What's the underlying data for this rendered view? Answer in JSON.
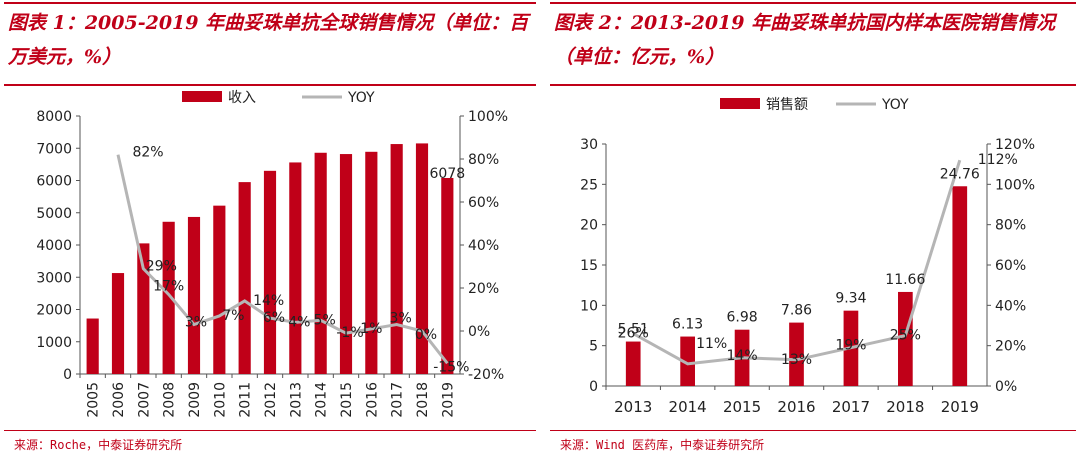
{
  "charts": [
    {
      "title": "图表 1：2005-2019 年曲妥珠单抗全球销售情况（单位：百万美元，%）",
      "source": "来源：Roche，中泰证券研究所",
      "chart_data": {
        "type": "bar",
        "categories": [
          "2005",
          "2006",
          "2007",
          "2008",
          "2009",
          "2010",
          "2011",
          "2012",
          "2013",
          "2014",
          "2015",
          "2016",
          "2017",
          "2018",
          "2019"
        ],
        "series": [
          {
            "name": "收入",
            "type": "bar",
            "axis": "left",
            "values": [
              1720,
              3130,
              4050,
              4720,
              4870,
              5220,
              5950,
              6300,
              6560,
              6860,
              6820,
              6890,
              7130,
              7150,
              6078
            ]
          },
          {
            "name": "YOY",
            "type": "line",
            "axis": "right",
            "values": [
              null,
              82,
              29,
              17,
              3,
              7,
              14,
              6,
              4,
              5,
              -1,
              1,
              3,
              0,
              -15
            ]
          }
        ],
        "bar_labels": [
          {
            "index": 14,
            "text": "6078"
          }
        ],
        "line_labels": [
          "",
          "82%",
          "29%",
          "17%",
          "3%",
          "7%",
          "14%",
          "6%",
          "4%",
          "5%",
          "-1%",
          "1%",
          "3%",
          "0%",
          "-15%"
        ],
        "left_axis": {
          "min": 0,
          "max": 8000,
          "ticks": [
            "0",
            "1000",
            "2000",
            "3000",
            "4000",
            "5000",
            "6000",
            "7000",
            "8000"
          ]
        },
        "right_axis": {
          "min": -20,
          "max": 100,
          "ticks": [
            "-20%",
            "0%",
            "20%",
            "40%",
            "60%",
            "80%",
            "100%"
          ]
        },
        "legend_position": "top",
        "colors": {
          "bar": "#c00018",
          "line": "#b5b5b5"
        }
      }
    },
    {
      "title": "图表 2：2013-2019 年曲妥珠单抗国内样本医院销售情况（单位：亿元，%）",
      "source": "来源：Wind 医药库，中泰证券研究所",
      "chart_data": {
        "type": "bar",
        "categories": [
          "2013",
          "2014",
          "2015",
          "2016",
          "2017",
          "2018",
          "2019"
        ],
        "series": [
          {
            "name": "销售额",
            "type": "bar",
            "axis": "left",
            "values": [
              5.51,
              6.13,
              6.98,
              7.86,
              9.34,
              11.66,
              24.76
            ]
          },
          {
            "name": "YOY",
            "type": "line",
            "axis": "right",
            "values": [
              26,
              11,
              14,
              13,
              19,
              25,
              112
            ]
          }
        ],
        "bar_labels": [
          {
            "index": 0,
            "text": "5.51"
          },
          {
            "index": 1,
            "text": "6.13"
          },
          {
            "index": 2,
            "text": "6.98"
          },
          {
            "index": 3,
            "text": "7.86"
          },
          {
            "index": 4,
            "text": "9.34"
          },
          {
            "index": 5,
            "text": "11.66"
          },
          {
            "index": 6,
            "text": "24.76"
          }
        ],
        "line_labels": [
          "26%",
          "11%",
          "14%",
          "13%",
          "19%",
          "25%",
          "112%"
        ],
        "left_axis": {
          "min": 0,
          "max": 30,
          "ticks": [
            "0",
            "5",
            "10",
            "15",
            "20",
            "25",
            "30"
          ]
        },
        "right_axis": {
          "min": 0,
          "max": 120,
          "ticks": [
            "0%",
            "20%",
            "40%",
            "60%",
            "80%",
            "100%",
            "120%"
          ]
        },
        "legend_position": "top",
        "colors": {
          "bar": "#c00018",
          "line": "#b5b5b5"
        }
      }
    }
  ]
}
